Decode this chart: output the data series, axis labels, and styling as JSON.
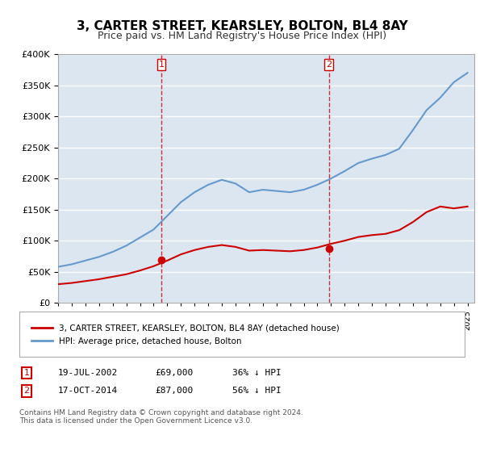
{
  "title": "3, CARTER STREET, KEARSLEY, BOLTON, BL4 8AY",
  "subtitle": "Price paid vs. HM Land Registry's House Price Index (HPI)",
  "title_fontsize": 11,
  "subtitle_fontsize": 9,
  "background_color": "#ffffff",
  "plot_bg_color": "#dce6f1",
  "grid_color": "#ffffff",
  "sale1": {
    "date": "2002-07-19",
    "price": 69000,
    "label": "1"
  },
  "sale2": {
    "date": "2014-10-17",
    "price": 87000,
    "label": "2"
  },
  "legend_label_red": "3, CARTER STREET, KEARSLEY, BOLTON, BL4 8AY (detached house)",
  "legend_label_blue": "HPI: Average price, detached house, Bolton",
  "table_rows": [
    [
      "1",
      "19-JUL-2002",
      "£69,000",
      "36% ↓ HPI"
    ],
    [
      "2",
      "17-OCT-2014",
      "£87,000",
      "56% ↓ HPI"
    ]
  ],
  "footer": "Contains HM Land Registry data © Crown copyright and database right 2024.\nThis data is licensed under the Open Government Licence v3.0.",
  "hpi_years": [
    1995,
    1996,
    1997,
    1998,
    1999,
    2000,
    2001,
    2002,
    2003,
    2004,
    2005,
    2006,
    2007,
    2008,
    2009,
    2010,
    2011,
    2012,
    2013,
    2014,
    2015,
    2016,
    2017,
    2018,
    2019,
    2020,
    2021,
    2022,
    2023,
    2024,
    2025
  ],
  "hpi_values": [
    58000,
    62000,
    68000,
    74000,
    82000,
    92000,
    105000,
    118000,
    140000,
    162000,
    178000,
    190000,
    198000,
    192000,
    178000,
    182000,
    180000,
    178000,
    182000,
    190000,
    200000,
    212000,
    225000,
    232000,
    238000,
    248000,
    278000,
    310000,
    330000,
    355000,
    370000
  ],
  "price_years": [
    1995,
    1996,
    1997,
    1998,
    1999,
    2000,
    2001,
    2002,
    2003,
    2004,
    2005,
    2006,
    2007,
    2008,
    2009,
    2010,
    2011,
    2012,
    2013,
    2014,
    2015,
    2016,
    2017,
    2018,
    2019,
    2020,
    2021,
    2022,
    2023,
    2024,
    2025
  ],
  "price_values": [
    30000,
    32000,
    35000,
    38000,
    42000,
    46000,
    52000,
    59000,
    68000,
    78000,
    85000,
    90000,
    93000,
    90000,
    84000,
    85000,
    84000,
    83000,
    85000,
    89000,
    95000,
    100000,
    106000,
    109000,
    111000,
    117000,
    130000,
    146000,
    155000,
    152000,
    155000
  ],
  "ylim": [
    0,
    400000
  ],
  "yticks": [
    0,
    50000,
    100000,
    150000,
    200000,
    250000,
    300000,
    350000,
    400000
  ],
  "xlim_start": 1995.0,
  "xlim_end": 2025.5,
  "xticks": [
    1995,
    1996,
    1997,
    1998,
    1999,
    2000,
    2001,
    2002,
    2003,
    2004,
    2005,
    2006,
    2007,
    2008,
    2009,
    2010,
    2011,
    2012,
    2013,
    2014,
    2015,
    2016,
    2017,
    2018,
    2019,
    2020,
    2021,
    2022,
    2023,
    2024,
    2025
  ],
  "red_color": "#cc0000",
  "blue_color": "#6699cc",
  "dashed_color": "#cc0000"
}
